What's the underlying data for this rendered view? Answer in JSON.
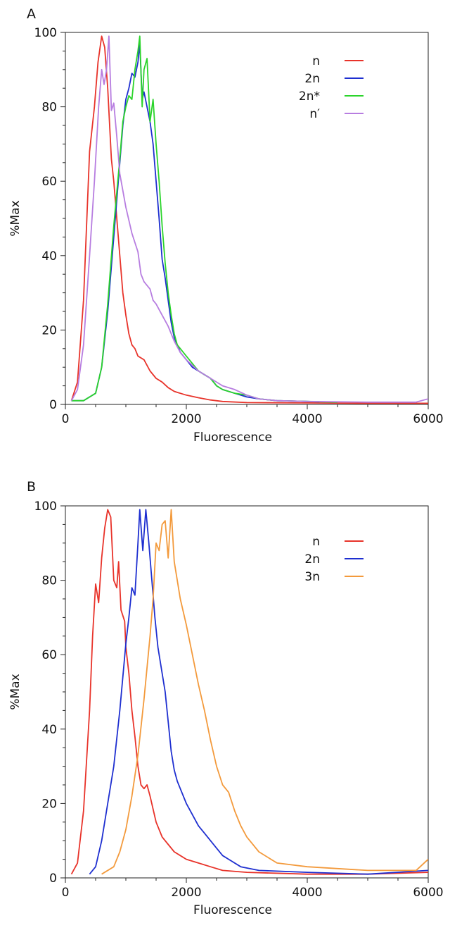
{
  "chart_data": [
    {
      "panel": "A",
      "type": "line",
      "xlabel": "Fluorescence",
      "ylabel": "%Max",
      "xlim": [
        0,
        6000
      ],
      "ylim": [
        0,
        100
      ],
      "xticks": [
        0,
        2000,
        4000,
        6000
      ],
      "yticks": [
        0,
        20,
        40,
        60,
        80,
        100
      ],
      "legend_position": "top-right",
      "series": [
        {
          "name": "n",
          "color": "#e8332a",
          "points": [
            [
              100,
              1
            ],
            [
              200,
              6
            ],
            [
              300,
              28
            ],
            [
              400,
              68
            ],
            [
              480,
              80
            ],
            [
              540,
              92
            ],
            [
              600,
              99
            ],
            [
              650,
              96
            ],
            [
              700,
              85
            ],
            [
              760,
              66
            ],
            [
              800,
              60
            ],
            [
              850,
              50
            ],
            [
              900,
              40
            ],
            [
              950,
              30
            ],
            [
              1000,
              24
            ],
            [
              1050,
              19
            ],
            [
              1100,
              16
            ],
            [
              1150,
              15
            ],
            [
              1200,
              13
            ],
            [
              1300,
              12
            ],
            [
              1400,
              9
            ],
            [
              1500,
              7
            ],
            [
              1600,
              6
            ],
            [
              1700,
              4.5
            ],
            [
              1800,
              3.5
            ],
            [
              1900,
              3
            ],
            [
              2000,
              2.5
            ],
            [
              2200,
              1.8
            ],
            [
              2400,
              1.2
            ],
            [
              2600,
              0.8
            ],
            [
              3000,
              0.5
            ],
            [
              4000,
              0.4
            ],
            [
              5000,
              0.3
            ],
            [
              6000,
              0.3
            ]
          ]
        },
        {
          "name": "2n",
          "color": "#1e2fd0",
          "points": [
            [
              100,
              1
            ],
            [
              300,
              1
            ],
            [
              500,
              3
            ],
            [
              600,
              10
            ],
            [
              700,
              25
            ],
            [
              800,
              45
            ],
            [
              900,
              65
            ],
            [
              950,
              75
            ],
            [
              1000,
              82
            ],
            [
              1050,
              85
            ],
            [
              1100,
              89
            ],
            [
              1150,
              88
            ],
            [
              1200,
              92
            ],
            [
              1230,
              97
            ],
            [
              1270,
              82
            ],
            [
              1300,
              84
            ],
            [
              1350,
              80
            ],
            [
              1400,
              76
            ],
            [
              1450,
              70
            ],
            [
              1500,
              60
            ],
            [
              1550,
              50
            ],
            [
              1600,
              39
            ],
            [
              1650,
              34
            ],
            [
              1700,
              28
            ],
            [
              1750,
              22
            ],
            [
              1800,
              18
            ],
            [
              1850,
              16
            ],
            [
              1900,
              14
            ],
            [
              2000,
              12
            ],
            [
              2100,
              10
            ],
            [
              2200,
              9
            ],
            [
              2300,
              8
            ],
            [
              2400,
              7
            ],
            [
              2500,
              5
            ],
            [
              2600,
              4
            ],
            [
              2800,
              3
            ],
            [
              3000,
              2
            ],
            [
              3200,
              1.5
            ],
            [
              3500,
              1
            ],
            [
              4000,
              0.8
            ],
            [
              4200,
              0.7
            ]
          ]
        },
        {
          "name": "2n*",
          "color": "#2bd42b",
          "points": [
            [
              100,
              1
            ],
            [
              300,
              1
            ],
            [
              500,
              3
            ],
            [
              600,
              10
            ],
            [
              700,
              27
            ],
            [
              800,
              48
            ],
            [
              900,
              66
            ],
            [
              950,
              76
            ],
            [
              1000,
              80
            ],
            [
              1050,
              83
            ],
            [
              1100,
              82
            ],
            [
              1150,
              90
            ],
            [
              1200,
              95
            ],
            [
              1230,
              99
            ],
            [
              1270,
              80
            ],
            [
              1300,
              90
            ],
            [
              1350,
              93
            ],
            [
              1400,
              76
            ],
            [
              1450,
              82
            ],
            [
              1500,
              70
            ],
            [
              1550,
              60
            ],
            [
              1600,
              48
            ],
            [
              1650,
              38
            ],
            [
              1700,
              30
            ],
            [
              1750,
              24
            ],
            [
              1800,
              19
            ],
            [
              1850,
              16
            ],
            [
              1900,
              15
            ],
            [
              2000,
              13
            ],
            [
              2100,
              11
            ],
            [
              2200,
              9
            ],
            [
              2300,
              8
            ],
            [
              2400,
              7
            ],
            [
              2500,
              5
            ],
            [
              2600,
              4
            ],
            [
              2800,
              3
            ],
            [
              3000,
              2.5
            ],
            [
              3200,
              1.5
            ],
            [
              3500,
              1
            ],
            [
              4000,
              0.8
            ],
            [
              4500,
              0.6
            ]
          ]
        },
        {
          "name": "n′",
          "color": "#b77de0",
          "points": [
            [
              100,
              1
            ],
            [
              200,
              4
            ],
            [
              300,
              16
            ],
            [
              400,
              40
            ],
            [
              480,
              60
            ],
            [
              550,
              80
            ],
            [
              600,
              90
            ],
            [
              640,
              86
            ],
            [
              680,
              90
            ],
            [
              720,
              99
            ],
            [
              760,
              79
            ],
            [
              800,
              81
            ],
            [
              850,
              72
            ],
            [
              900,
              62
            ],
            [
              1000,
              53
            ],
            [
              1100,
              46
            ],
            [
              1200,
              41
            ],
            [
              1250,
              35
            ],
            [
              1300,
              33
            ],
            [
              1400,
              31
            ],
            [
              1450,
              28
            ],
            [
              1500,
              27
            ],
            [
              1600,
              24
            ],
            [
              1700,
              21
            ],
            [
              1800,
              17
            ],
            [
              1900,
              14
            ],
            [
              2000,
              12
            ],
            [
              2200,
              9
            ],
            [
              2400,
              7
            ],
            [
              2600,
              5
            ],
            [
              2800,
              4
            ],
            [
              3000,
              2.5
            ],
            [
              3200,
              1.5
            ],
            [
              3500,
              1
            ],
            [
              4000,
              0.8
            ],
            [
              5000,
              0.6
            ],
            [
              5800,
              0.6
            ],
            [
              6000,
              1.5
            ]
          ]
        }
      ]
    },
    {
      "panel": "B",
      "type": "line",
      "xlabel": "Fluorescence",
      "ylabel": "%Max",
      "xlim": [
        0,
        6000
      ],
      "ylim": [
        0,
        100
      ],
      "xticks": [
        0,
        2000,
        4000,
        6000
      ],
      "yticks": [
        0,
        20,
        40,
        60,
        80,
        100
      ],
      "legend_position": "top-right",
      "series": [
        {
          "name": "n",
          "color": "#e8332a",
          "points": [
            [
              100,
              1
            ],
            [
              200,
              4
            ],
            [
              300,
              18
            ],
            [
              400,
              45
            ],
            [
              450,
              65
            ],
            [
              500,
              79
            ],
            [
              550,
              74
            ],
            [
              600,
              86
            ],
            [
              650,
              94
            ],
            [
              700,
              99
            ],
            [
              750,
              97
            ],
            [
              800,
              80
            ],
            [
              850,
              78
            ],
            [
              880,
              85
            ],
            [
              920,
              72
            ],
            [
              980,
              69
            ],
            [
              1000,
              62
            ],
            [
              1050,
              55
            ],
            [
              1100,
              45
            ],
            [
              1150,
              38
            ],
            [
              1200,
              30
            ],
            [
              1250,
              25
            ],
            [
              1300,
              24
            ],
            [
              1350,
              25
            ],
            [
              1400,
              22
            ],
            [
              1500,
              15
            ],
            [
              1600,
              11
            ],
            [
              1700,
              9
            ],
            [
              1800,
              7
            ],
            [
              1900,
              6
            ],
            [
              2000,
              5
            ],
            [
              2200,
              4
            ],
            [
              2400,
              3
            ],
            [
              2600,
              2
            ],
            [
              3000,
              1.5
            ],
            [
              4000,
              1
            ],
            [
              5000,
              1
            ],
            [
              6000,
              1.5
            ]
          ]
        },
        {
          "name": "2n",
          "color": "#1e2fd0",
          "points": [
            [
              400,
              1
            ],
            [
              500,
              3
            ],
            [
              600,
              10
            ],
            [
              700,
              20
            ],
            [
              800,
              30
            ],
            [
              900,
              45
            ],
            [
              1000,
              63
            ],
            [
              1050,
              70
            ],
            [
              1100,
              78
            ],
            [
              1150,
              76
            ],
            [
              1200,
              90
            ],
            [
              1230,
              99
            ],
            [
              1280,
              88
            ],
            [
              1330,
              99
            ],
            [
              1380,
              90
            ],
            [
              1430,
              80
            ],
            [
              1480,
              70
            ],
            [
              1530,
              62
            ],
            [
              1600,
              55
            ],
            [
              1650,
              50
            ],
            [
              1700,
              42
            ],
            [
              1750,
              34
            ],
            [
              1800,
              29
            ],
            [
              1850,
              26
            ],
            [
              1900,
              24
            ],
            [
              2000,
              20
            ],
            [
              2100,
              17
            ],
            [
              2200,
              14
            ],
            [
              2300,
              12
            ],
            [
              2400,
              10
            ],
            [
              2500,
              8
            ],
            [
              2600,
              6
            ],
            [
              2700,
              5
            ],
            [
              2900,
              3
            ],
            [
              3200,
              2
            ],
            [
              4000,
              1.5
            ],
            [
              5000,
              1
            ],
            [
              6000,
              2
            ]
          ]
        },
        {
          "name": "3n",
          "color": "#f39a3c",
          "points": [
            [
              600,
              1
            ],
            [
              800,
              3
            ],
            [
              900,
              7
            ],
            [
              1000,
              13
            ],
            [
              1100,
              22
            ],
            [
              1200,
              33
            ],
            [
              1300,
              48
            ],
            [
              1400,
              65
            ],
            [
              1450,
              75
            ],
            [
              1500,
              90
            ],
            [
              1550,
              88
            ],
            [
              1600,
              95
            ],
            [
              1650,
              96
            ],
            [
              1700,
              86
            ],
            [
              1750,
              99
            ],
            [
              1800,
              85
            ],
            [
              1900,
              75
            ],
            [
              2000,
              68
            ],
            [
              2100,
              60
            ],
            [
              2200,
              52
            ],
            [
              2300,
              45
            ],
            [
              2400,
              37
            ],
            [
              2500,
              30
            ],
            [
              2600,
              25
            ],
            [
              2700,
              23
            ],
            [
              2800,
              18
            ],
            [
              2900,
              14
            ],
            [
              3000,
              11
            ],
            [
              3200,
              7
            ],
            [
              3500,
              4
            ],
            [
              4000,
              3
            ],
            [
              5000,
              2
            ],
            [
              5800,
              2
            ],
            [
              6000,
              5
            ]
          ]
        }
      ]
    }
  ]
}
